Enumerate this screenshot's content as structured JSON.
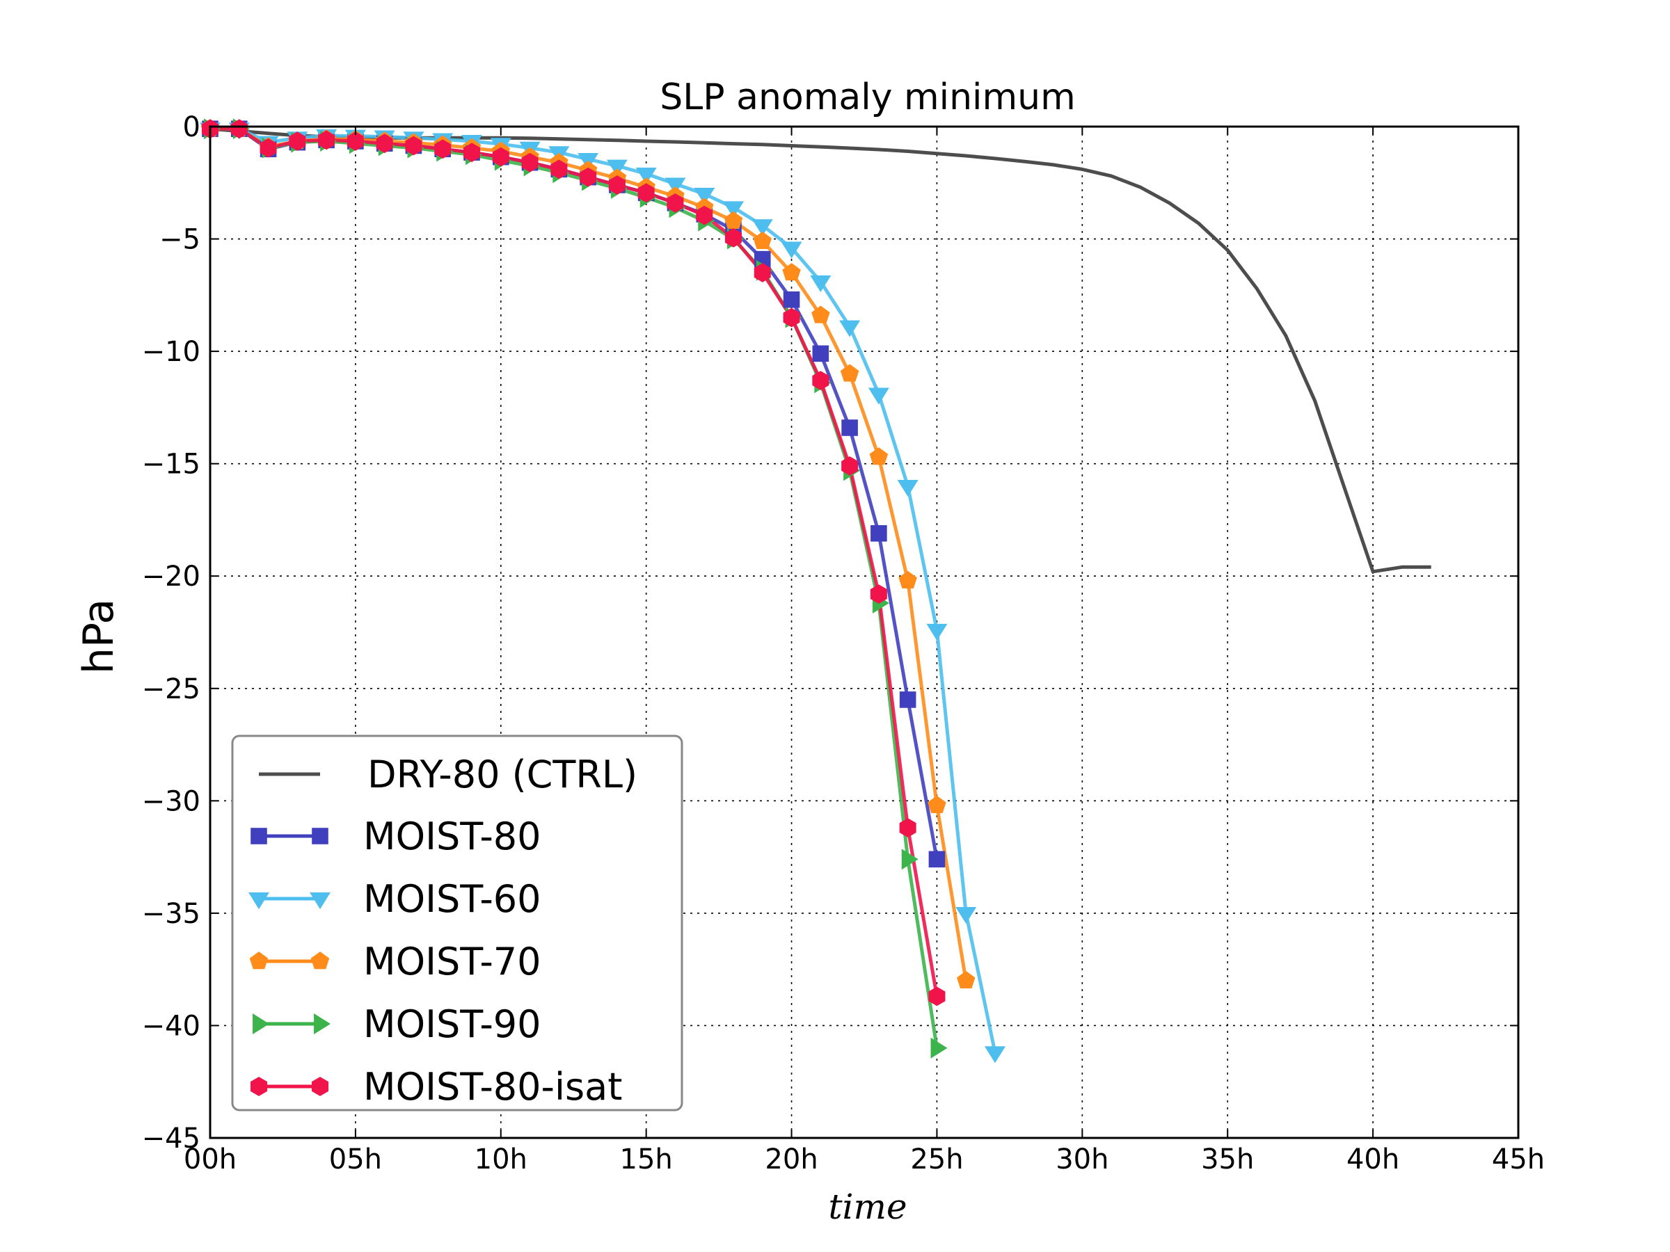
{
  "chart_data": {
    "type": "line",
    "title": "SLP anomaly minimum",
    "xlabel": "time",
    "ylabel": "hPa",
    "xlim": [
      0,
      45
    ],
    "ylim": [
      -45,
      0
    ],
    "x_ticks": [
      0,
      5,
      10,
      15,
      20,
      25,
      30,
      35,
      40,
      45
    ],
    "x_tick_labels": [
      "00h",
      "05h",
      "10h",
      "15h",
      "20h",
      "25h",
      "30h",
      "35h",
      "40h",
      "45h"
    ],
    "y_ticks": [
      0,
      -5,
      -10,
      -15,
      -20,
      -25,
      -30,
      -35,
      -40,
      -45
    ],
    "y_tick_labels": [
      "0",
      "−5",
      "−10",
      "−15",
      "−20",
      "−25",
      "−30",
      "−35",
      "−40",
      "−45"
    ],
    "grid": true,
    "legend_position": "lower-left",
    "series": [
      {
        "name": "DRY-80 (CTRL)",
        "color": "#4d4d4d",
        "marker": "none",
        "x": [
          0,
          1,
          2,
          3,
          4,
          5,
          6,
          7,
          8,
          9,
          10,
          11,
          12,
          13,
          14,
          15,
          16,
          17,
          18,
          19,
          20,
          21,
          22,
          23,
          24,
          25,
          26,
          27,
          28,
          29,
          30,
          31,
          32,
          33,
          34,
          35,
          36,
          37,
          38,
          39,
          40,
          41,
          42
        ],
        "y": [
          -0.1,
          -0.2,
          -0.3,
          -0.4,
          -0.45,
          -0.5,
          -0.5,
          -0.5,
          -0.5,
          -0.5,
          -0.5,
          -0.52,
          -0.55,
          -0.58,
          -0.61,
          -0.65,
          -0.68,
          -0.72,
          -0.76,
          -0.8,
          -0.85,
          -0.9,
          -0.96,
          -1.02,
          -1.1,
          -1.2,
          -1.3,
          -1.42,
          -1.55,
          -1.7,
          -1.9,
          -2.2,
          -2.7,
          -3.4,
          -4.3,
          -5.5,
          -7.2,
          -9.3,
          -12.2,
          -16.0,
          -19.8,
          -19.6,
          -19.6
        ]
      },
      {
        "name": "MOIST-80",
        "color": "#4040bf",
        "marker": "square",
        "x": [
          0,
          1,
          2,
          3,
          4,
          5,
          6,
          7,
          8,
          9,
          10,
          11,
          12,
          13,
          14,
          15,
          16,
          17,
          18,
          19,
          20,
          21,
          22,
          23,
          24,
          25
        ],
        "y": [
          -0.1,
          -0.1,
          -1.0,
          -0.7,
          -0.6,
          -0.65,
          -0.75,
          -0.85,
          -1.0,
          -1.15,
          -1.35,
          -1.6,
          -1.9,
          -2.25,
          -2.6,
          -2.95,
          -3.4,
          -3.9,
          -4.6,
          -5.9,
          -7.7,
          -10.1,
          -13.4,
          -18.1,
          -25.5,
          -32.6
        ]
      },
      {
        "name": "MOIST-60",
        "color": "#4dbeee",
        "marker": "triangle-down",
        "x": [
          0,
          1,
          2,
          3,
          4,
          5,
          6,
          7,
          8,
          9,
          10,
          11,
          12,
          13,
          14,
          15,
          16,
          17,
          18,
          19,
          20,
          21,
          22,
          23,
          24,
          25,
          26,
          27
        ],
        "y": [
          -0.1,
          -0.1,
          -0.7,
          -0.5,
          -0.4,
          -0.42,
          -0.45,
          -0.5,
          -0.57,
          -0.65,
          -0.78,
          -0.95,
          -1.15,
          -1.45,
          -1.75,
          -2.1,
          -2.55,
          -3.0,
          -3.6,
          -4.4,
          -5.4,
          -6.9,
          -8.9,
          -11.9,
          -16.0,
          -22.4,
          -35.0,
          -41.2
        ]
      },
      {
        "name": "MOIST-70",
        "color": "#ff8c1a",
        "marker": "pentagon",
        "x": [
          0,
          1,
          2,
          3,
          4,
          5,
          6,
          7,
          8,
          9,
          10,
          11,
          12,
          13,
          14,
          15,
          16,
          17,
          18,
          19,
          20,
          21,
          22,
          23,
          24,
          25,
          26
        ],
        "y": [
          -0.1,
          -0.1,
          -0.9,
          -0.65,
          -0.55,
          -0.58,
          -0.65,
          -0.72,
          -0.82,
          -0.95,
          -1.1,
          -1.35,
          -1.6,
          -1.95,
          -2.3,
          -2.7,
          -3.1,
          -3.6,
          -4.2,
          -5.1,
          -6.5,
          -8.4,
          -11.0,
          -14.7,
          -20.2,
          -30.2,
          -38.0
        ]
      },
      {
        "name": "MOIST-90",
        "color": "#3cb44b",
        "marker": "triangle-right",
        "x": [
          0,
          1,
          2,
          3,
          4,
          5,
          6,
          7,
          8,
          9,
          10,
          11,
          12,
          13,
          14,
          15,
          16,
          17,
          18,
          19,
          20,
          21,
          22,
          23,
          24,
          25
        ],
        "y": [
          -0.1,
          -0.1,
          -0.95,
          -0.7,
          -0.65,
          -0.75,
          -0.85,
          -0.95,
          -1.1,
          -1.25,
          -1.5,
          -1.75,
          -2.05,
          -2.4,
          -2.75,
          -3.15,
          -3.6,
          -4.2,
          -5.0,
          -6.4,
          -8.5,
          -11.4,
          -15.3,
          -21.2,
          -32.6,
          -41.0
        ]
      },
      {
        "name": "MOIST-80-isat",
        "color": "#f0144a",
        "marker": "hexagon",
        "x": [
          0,
          1,
          2,
          3,
          4,
          5,
          6,
          7,
          8,
          9,
          10,
          11,
          12,
          13,
          14,
          15,
          16,
          17,
          18,
          19,
          20,
          21,
          22,
          23,
          24,
          25
        ],
        "y": [
          -0.1,
          -0.1,
          -0.95,
          -0.65,
          -0.6,
          -0.65,
          -0.75,
          -0.85,
          -1.0,
          -1.15,
          -1.35,
          -1.6,
          -1.9,
          -2.25,
          -2.6,
          -2.95,
          -3.4,
          -3.95,
          -4.95,
          -6.5,
          -8.5,
          -11.3,
          -15.1,
          -20.8,
          -31.2,
          -38.7
        ]
      }
    ]
  }
}
